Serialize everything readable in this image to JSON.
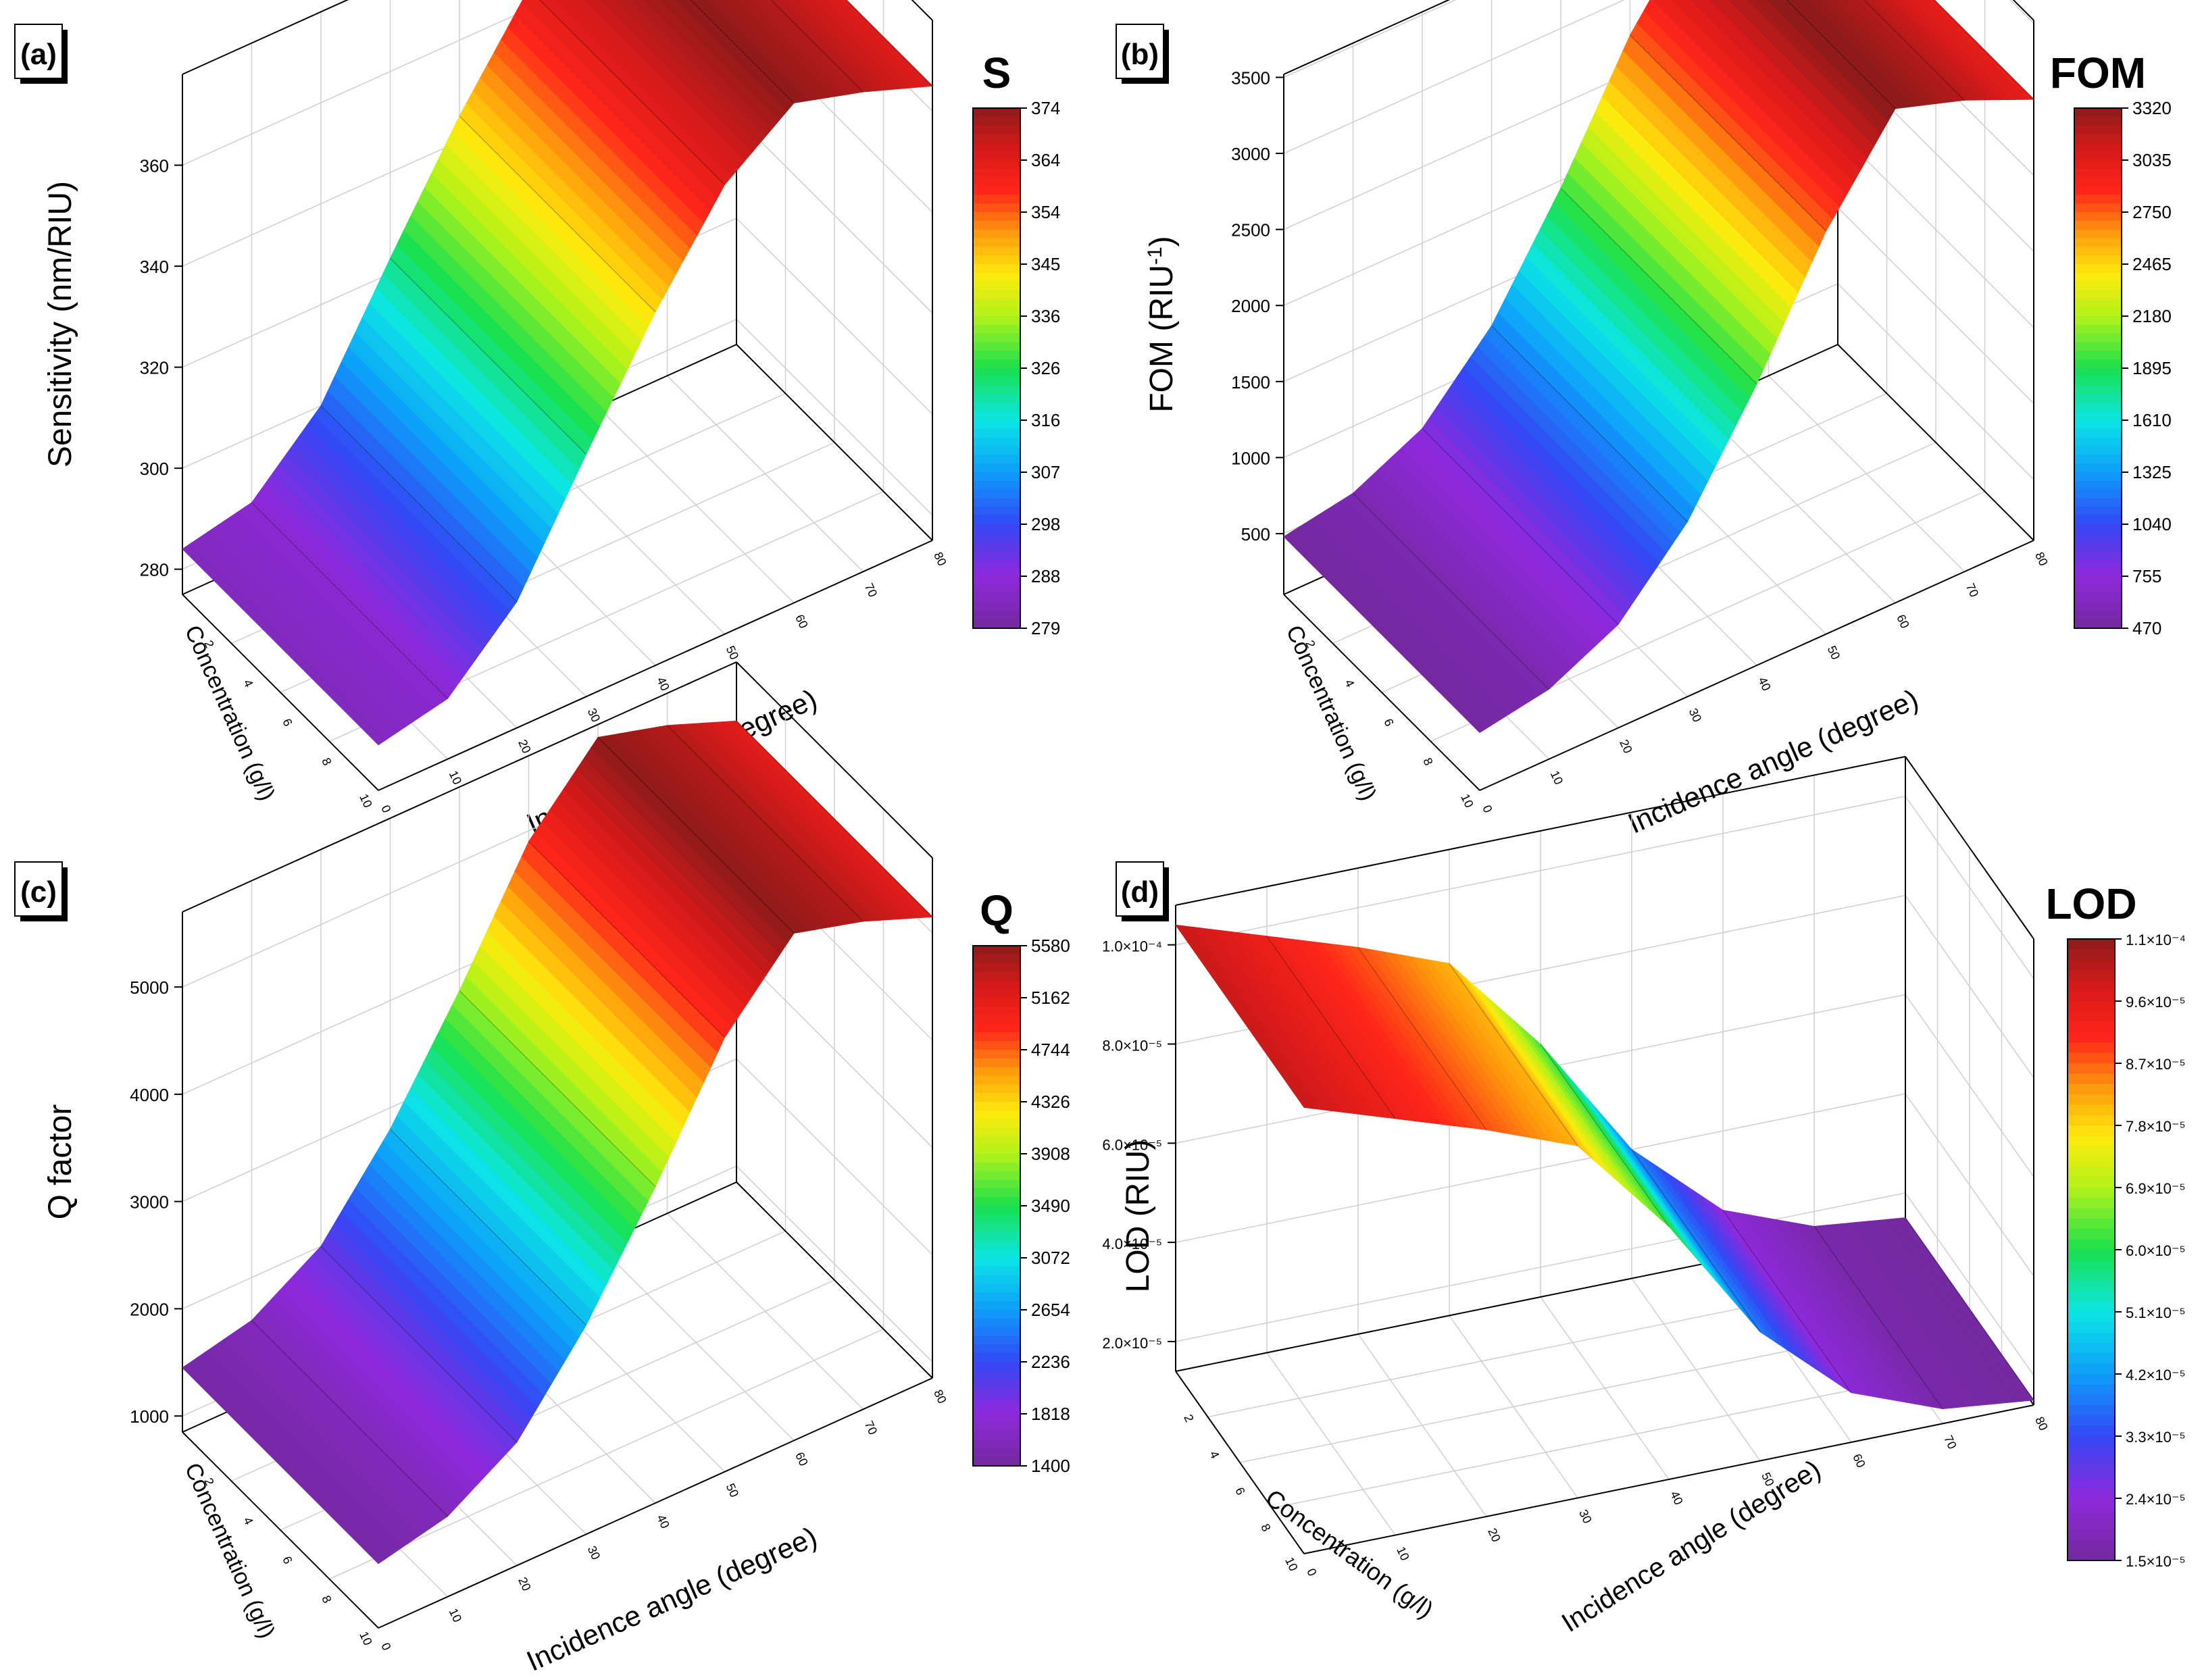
{
  "chart_data": [
    {
      "panel": "(a)",
      "type": "surface3d",
      "zlabel": "Sensitivity (nm/RIU)",
      "xlabel": "Incidence angle (degree)",
      "ylabel": "Concentration (g/l)",
      "colorbar_title": "S",
      "colorbar_ticks": [
        "374",
        "364",
        "354",
        "345",
        "336",
        "326",
        "316",
        "307",
        "298",
        "288",
        "279"
      ],
      "z_ticks": [
        "360",
        "340",
        "320",
        "300",
        "280"
      ],
      "x_ticks": [
        "0",
        "10",
        "20",
        "30",
        "40",
        "50",
        "60",
        "70",
        "80"
      ],
      "y_ticks": [
        "2",
        "4",
        "6",
        "8",
        "10"
      ],
      "zlim": [
        275,
        378
      ],
      "angle": [
        0,
        10,
        20,
        30,
        40,
        50,
        60,
        70,
        80
      ],
      "values": [
        284,
        287,
        300,
        323,
        345,
        364,
        374,
        370,
        365
      ],
      "clim": [
        279,
        374
      ]
    },
    {
      "panel": "(b)",
      "type": "surface3d",
      "zlabel": "FOM (RIU",
      "zlabel_sup": "-1",
      "zlabel_end": ")",
      "xlabel": "Incidence angle (degree)",
      "ylabel": "Concentration (g/l)",
      "colorbar_title": "FOM",
      "colorbar_ticks": [
        "3320",
        "3035",
        "2750",
        "2465",
        "2180",
        "1895",
        "1610",
        "1325",
        "1040",
        "755",
        "470"
      ],
      "z_ticks": [
        "3500",
        "3000",
        "2500",
        "2000",
        "1500",
        "1000",
        "500"
      ],
      "x_ticks": [
        "0",
        "10",
        "20",
        "30",
        "40",
        "50",
        "60",
        "70",
        "80"
      ],
      "y_ticks": [
        "2",
        "4",
        "6",
        "8",
        "10"
      ],
      "zlim": [
        100,
        3520
      ],
      "angle": [
        0,
        10,
        20,
        30,
        40,
        50,
        60,
        70,
        80
      ],
      "values": [
        480,
        560,
        780,
        1250,
        1950,
        2750,
        3350,
        3200,
        3000
      ],
      "clim": [
        470,
        3320
      ]
    },
    {
      "panel": "(c)",
      "type": "surface3d",
      "zlabel": "Q factor",
      "xlabel": "Incidence angle (degree)",
      "ylabel": "Concentration (g/l)",
      "colorbar_title": "Q",
      "colorbar_ticks": [
        "5580",
        "5162",
        "4744",
        "4326",
        "3908",
        "3490",
        "3072",
        "2654",
        "2236",
        "1818",
        "1400"
      ],
      "z_ticks": [
        "5000",
        "4000",
        "3000",
        "2000",
        "1000"
      ],
      "x_ticks": [
        "0",
        "10",
        "20",
        "30",
        "40",
        "50",
        "60",
        "70",
        "80"
      ],
      "y_ticks": [
        "2",
        "4",
        "6",
        "8",
        "10"
      ],
      "zlim": [
        850,
        5700
      ],
      "angle": [
        0,
        10,
        20,
        30,
        40,
        50,
        60,
        70,
        80
      ],
      "values": [
        1450,
        1600,
        2000,
        2800,
        3800,
        4900,
        5580,
        5400,
        5150
      ],
      "clim": [
        1400,
        5580
      ]
    },
    {
      "panel": "(d)",
      "type": "surface3d",
      "zlabel": "LOD (RIU)",
      "xlabel": "Incidence angle (degree)",
      "ylabel": "Concentration (g/l)",
      "colorbar_title": "LOD",
      "colorbar_ticks": [
        "1.1×10⁻⁴",
        "9.6×10⁻⁵",
        "8.7×10⁻⁵",
        "7.8×10⁻⁵",
        "6.9×10⁻⁵",
        "6.0×10⁻⁵",
        "5.1×10⁻⁵",
        "4.2×10⁻⁵",
        "3.3×10⁻⁵",
        "2.4×10⁻⁵",
        "1.5×10⁻⁵"
      ],
      "z_ticks": [
        "1.0×10⁻⁴",
        "8.0×10⁻⁵",
        "6.0×10⁻⁵",
        "4.0×10⁻⁵",
        "2.0×10⁻⁵"
      ],
      "x_ticks": [
        "0",
        "10",
        "20",
        "30",
        "40",
        "50",
        "60",
        "70",
        "80"
      ],
      "y_ticks": [
        "2",
        "4",
        "6",
        "8",
        "10"
      ],
      "zlim": [
        1.4e-05,
        0.000108
      ],
      "angle": [
        0,
        10,
        20,
        30,
        40,
        50,
        60,
        70,
        80
      ],
      "values": [
        0.000104,
        9.8e-05,
        9.2e-05,
        8.5e-05,
        6.5e-05,
        4e-05,
        2.4e-05,
        1.7e-05,
        1.5e-05
      ],
      "clim": [
        1.5e-05,
        0.00011
      ]
    }
  ]
}
